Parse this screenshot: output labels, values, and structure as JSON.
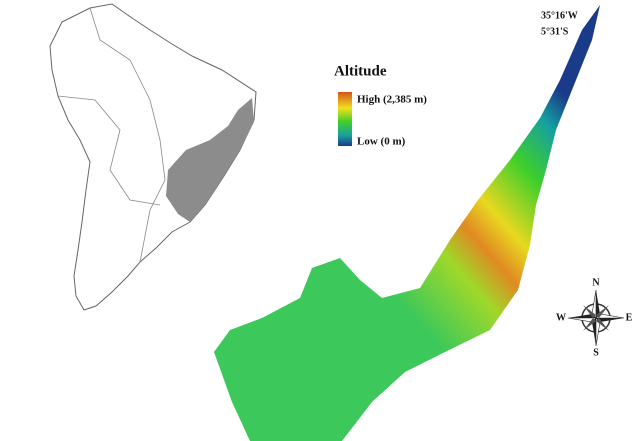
{
  "coordinates": {
    "longitude": "35°16'W",
    "latitude": "5°31'S"
  },
  "legend": {
    "title": "Altitude",
    "high": "High (2,385 m)",
    "low": "Low (0 m)"
  },
  "compass": {
    "north": "N",
    "south": "S",
    "east": "E",
    "west": "W"
  }
}
